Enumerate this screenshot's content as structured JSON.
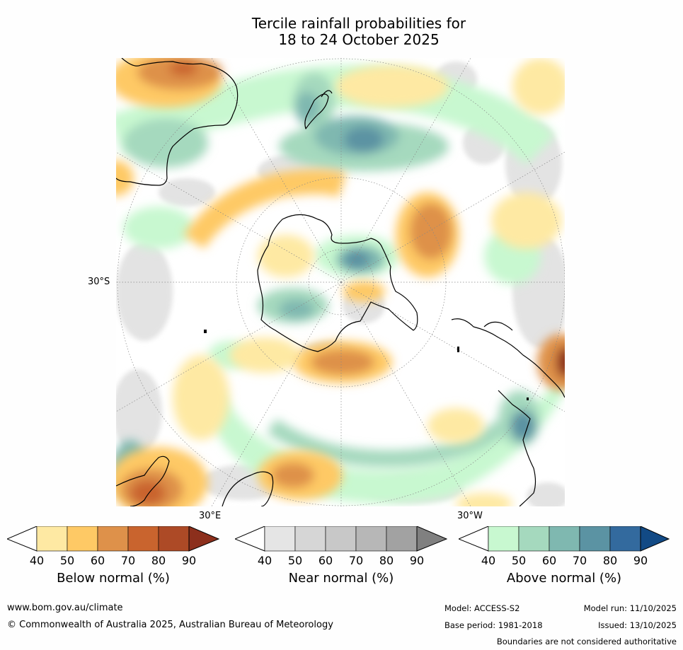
{
  "title_line1": "Tercile rainfall probabilities for",
  "title_line2": "18 to 24 October 2025",
  "map": {
    "lat_label": "30°S",
    "lon_label_east": "30°E",
    "lon_label_west": "30°W"
  },
  "colorbars": [
    {
      "label": "Below normal (%)",
      "ticks": [
        "40",
        "50",
        "60",
        "70",
        "80",
        "90"
      ],
      "colors": [
        "#ffffff",
        "#fee9a3",
        "#fec965",
        "#de914a",
        "#c9642e",
        "#ad4a26",
        "#8c2f1c"
      ]
    },
    {
      "label": "Near normal (%)",
      "ticks": [
        "40",
        "50",
        "60",
        "70",
        "80",
        "90"
      ],
      "colors": [
        "#ffffff",
        "#e5e5e5",
        "#d6d6d6",
        "#c8c8c8",
        "#b7b7b7",
        "#a2a2a2",
        "#808080"
      ]
    },
    {
      "label": "Above normal (%)",
      "ticks": [
        "40",
        "50",
        "60",
        "70",
        "80",
        "90"
      ],
      "colors": [
        "#ffffff",
        "#c8f8d0",
        "#a5d9be",
        "#7fb8b0",
        "#5b93a3",
        "#336a9e",
        "#124a85"
      ]
    }
  ],
  "footer": {
    "url": "www.bom.gov.au/climate",
    "copyright": "© Commonwealth of Australia 2025, Australian Bureau of Meteorology",
    "model": "Model: ACCESS-S2",
    "base_period": "Base period: 1981-2018",
    "model_run": "Model run: 11/10/2025",
    "issued": "Issued: 13/10/2025",
    "disclaimer": "Boundaries are not considered authoritative"
  }
}
